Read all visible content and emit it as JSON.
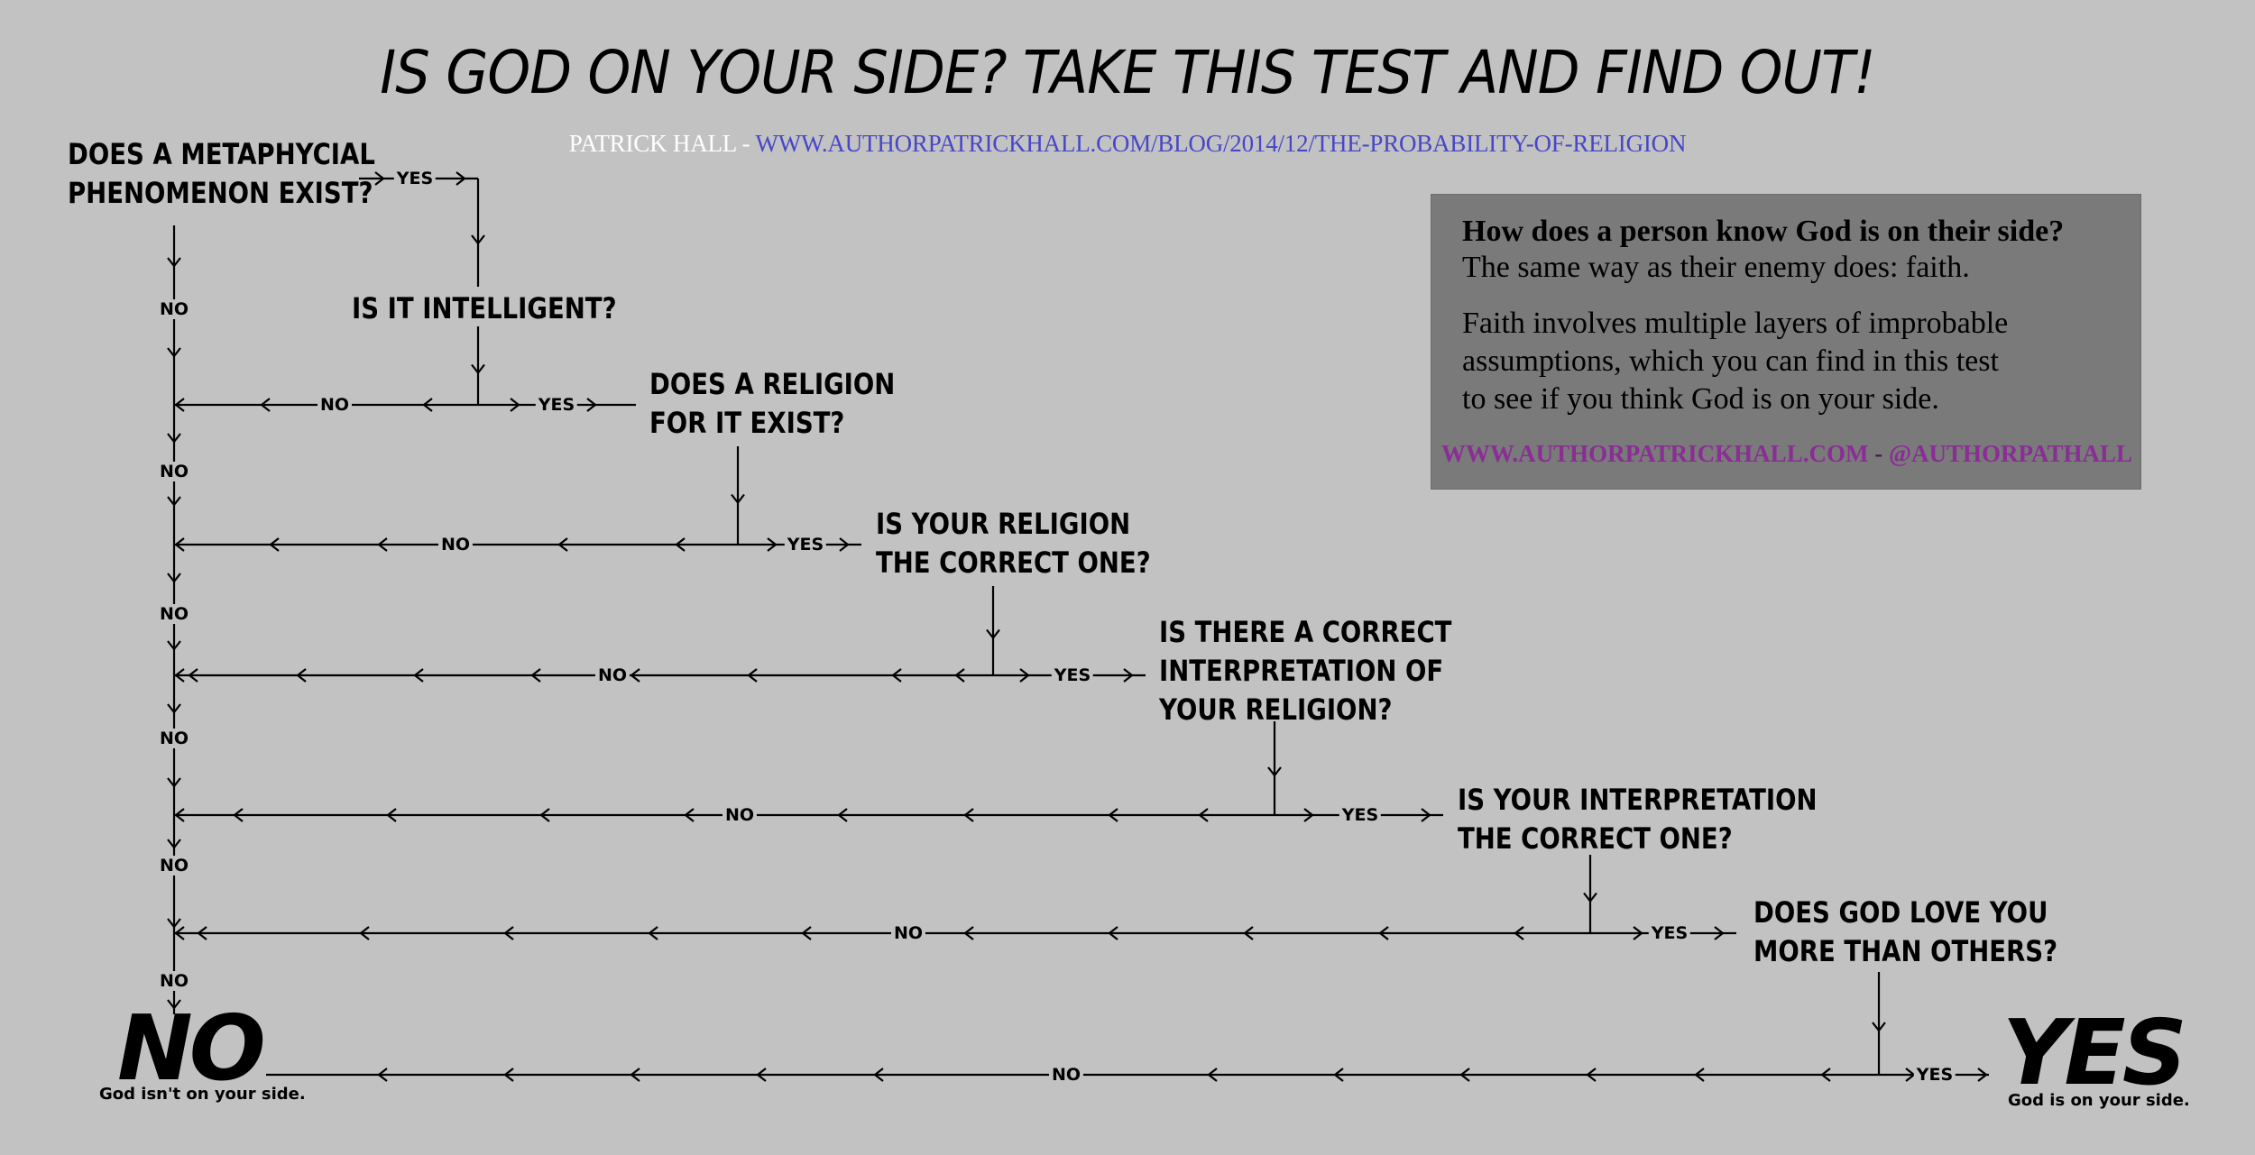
{
  "title": "IS GOD ON YOUR SIDE? TAKE THIS TEST AND FIND OUT!",
  "credit": {
    "author": "PATRICK HALL",
    "separator": " - ",
    "url": "WWW.AUTHORPATRICKHALL.COM/BLOG/2014/12/THE-PROBABILITY-OF-RELIGION"
  },
  "questions": [
    "DOES A METAPHYCIAL\nPHENOMENON EXIST?",
    "IS IT INTELLIGENT?",
    "DOES A RELIGION\nFOR IT EXIST?",
    "IS YOUR RELIGION\nTHE CORRECT ONE?",
    "IS THERE A CORRECT\nINTERPRETATION OF\nYOUR RELIGION?",
    "IS YOUR INTERPRETATION\nTHE CORRECT ONE?",
    "DOES GOD LOVE YOU\nMORE THAN OTHERS?"
  ],
  "labels": {
    "yes": "YES",
    "no": "NO"
  },
  "outcomes": {
    "no": {
      "word": "NO",
      "caption": "God isn't on your side."
    },
    "yes": {
      "word": "YES",
      "caption": "God is on your side."
    }
  },
  "infobox": {
    "heading": "How does a person know God is on their side?",
    "line1": "The same way as their enemy does: faith.",
    "paragraph": "Faith involves multiple layers of improbable\nassumptions, which you can find in this test\nto see if you think God is on your side.",
    "link1": "WWW.AUTHORPATRICKHALL.COM",
    "link_separator": " - ",
    "link2": "@AUTHORPATHALL"
  }
}
